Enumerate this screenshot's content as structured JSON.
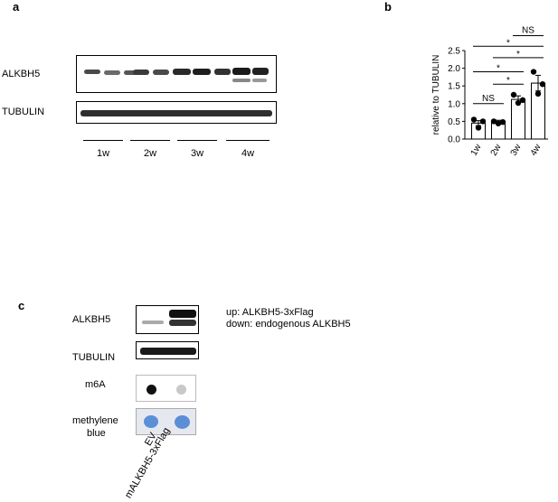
{
  "panel_a": {
    "letter": "a",
    "rows": [
      "ALKBH5",
      "TUBULIN"
    ],
    "lanes": [
      "1w",
      "2w",
      "3w",
      "4w"
    ]
  },
  "panel_b": {
    "letter": "b"
  },
  "panel_c": {
    "letter": "c",
    "rows": [
      "ALKBH5",
      "TUBULIN",
      "m6A",
      "methylene",
      "blue"
    ],
    "lanes": [
      "EV",
      "mALKBH5-3xFlag"
    ],
    "note_up": "up: ALKBH5-3xFlag",
    "note_down": "down: endogenous ALKBH5"
  },
  "chart_data": {
    "type": "bar",
    "categories": [
      "1w",
      "2w",
      "3w",
      "4w"
    ],
    "values": [
      0.45,
      0.48,
      1.12,
      1.58
    ],
    "errors": [
      0.07,
      0.05,
      0.1,
      0.22
    ],
    "points": [
      [
        0.55,
        0.5,
        0.32
      ],
      [
        0.5,
        0.48,
        0.44
      ],
      [
        1.25,
        1.1,
        1.02
      ],
      [
        1.9,
        1.55,
        1.28
      ]
    ],
    "ylabel": "relative to TUBULIN",
    "ylim": [
      0,
      2.5
    ],
    "yticks": [
      "0.0",
      "0.5",
      "1.0",
      "1.5",
      "2.0",
      "2.5"
    ],
    "significance": [
      {
        "from": "1w",
        "to": "2w",
        "label": "NS"
      },
      {
        "from": "2w",
        "to": "3w",
        "label": "*"
      },
      {
        "from": "1w",
        "to": "3w",
        "label": "*"
      },
      {
        "from": "2w",
        "to": "4w",
        "label": "*"
      },
      {
        "from": "1w",
        "to": "4w",
        "label": "*"
      },
      {
        "from": "3w",
        "to": "4w",
        "label": "NS"
      }
    ]
  }
}
